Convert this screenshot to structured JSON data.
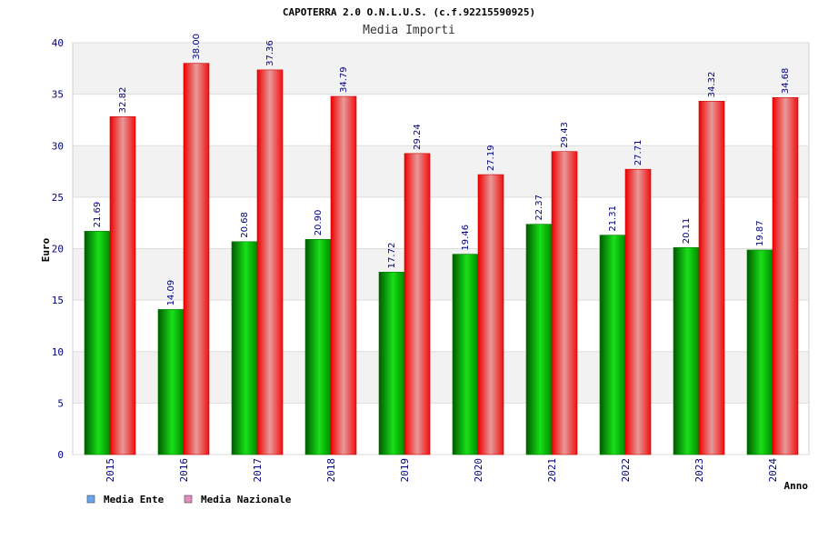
{
  "chart_data": {
    "type": "bar",
    "title": "CAPOTERRA 2.0 O.N.L.U.S. (c.f.92215590925)",
    "subtitle": "Media Importi",
    "xlabel": "Anno",
    "ylabel": "Euro",
    "ylim": [
      0,
      40
    ],
    "yticks": [
      0,
      5,
      10,
      15,
      20,
      25,
      30,
      35,
      40
    ],
    "categories": [
      "2015",
      "2016",
      "2017",
      "2018",
      "2019",
      "2020",
      "2021",
      "2022",
      "2023",
      "2024"
    ],
    "series": [
      {
        "name": "Media Ente",
        "values": [
          21.69,
          14.09,
          20.68,
          20.9,
          17.72,
          19.46,
          22.37,
          21.31,
          20.11,
          19.87
        ],
        "labels": [
          "21.69",
          "14.09",
          "20.68",
          "20.90",
          "17.72",
          "19.46",
          "22.37",
          "21.31",
          "20.11",
          "19.87"
        ]
      },
      {
        "name": "Media Nazionale",
        "values": [
          32.82,
          38.0,
          37.36,
          34.79,
          29.24,
          27.19,
          29.43,
          27.71,
          34.32,
          34.68
        ],
        "labels": [
          "32.82",
          "38.00",
          "37.36",
          "34.79",
          "29.24",
          "27.19",
          "29.43",
          "27.71",
          "34.32",
          "34.68"
        ]
      }
    ],
    "legend": [
      {
        "label": "Media Ente",
        "color": "#66a6ee"
      },
      {
        "label": "Media Nazionale",
        "color": "#e28cc0"
      }
    ],
    "grid": true,
    "legend_position": "bottom-left"
  }
}
